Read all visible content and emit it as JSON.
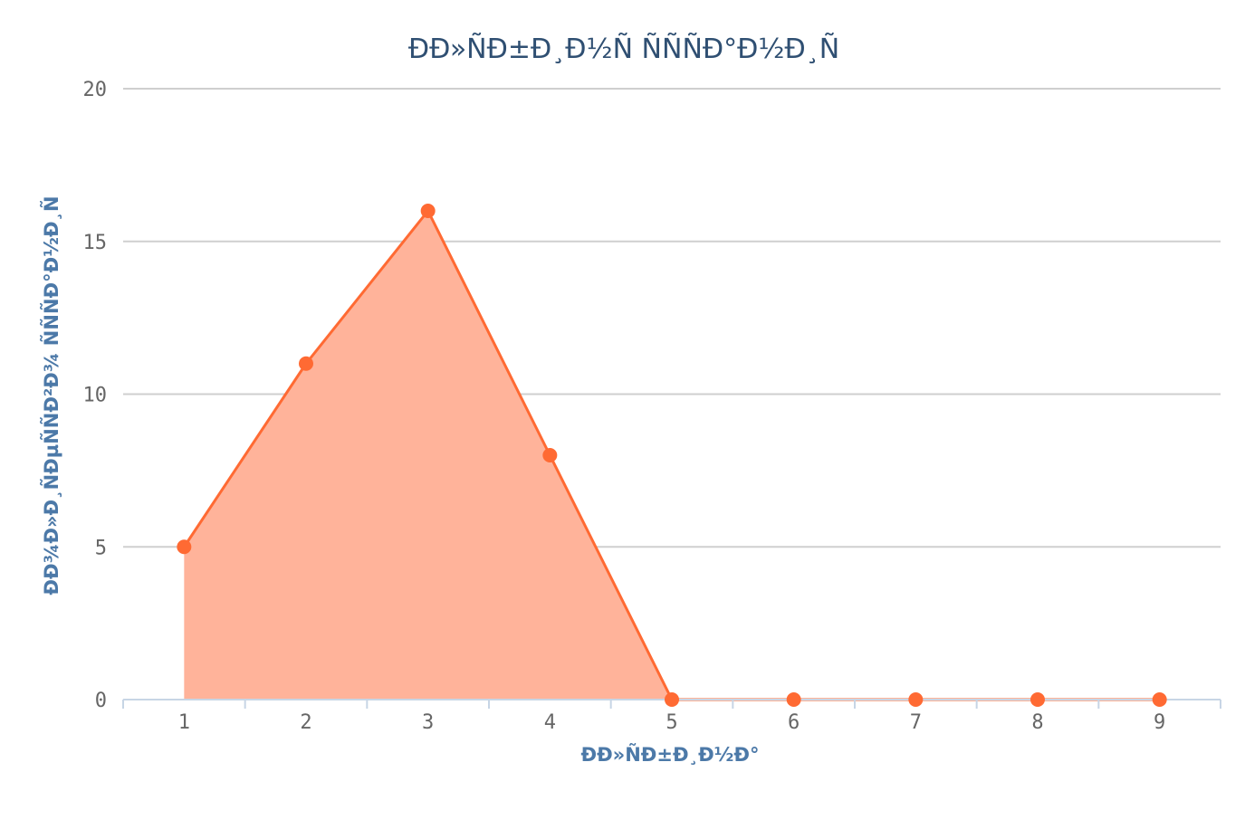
{
  "chart_data": {
    "type": "area",
    "title": "ÐÐ»ÑÐ±Ð¸Ð½Ñ ÑÑÑÐ°Ð½Ð¸Ñ",
    "xlabel": "ÐÐ»ÑÐ±Ð¸Ð½Ð°",
    "ylabel": "ÐÐ¾Ð»Ð¸ÑÐµÑÑÐ²Ð¾ ÑÑÑÐ°Ð½Ð¸Ñ",
    "x": [
      "1",
      "2",
      "3",
      "4",
      "5",
      "6",
      "7",
      "8",
      "9"
    ],
    "values": [
      5,
      11,
      16,
      8,
      0,
      0,
      0,
      0,
      0
    ],
    "ylim": [
      0,
      20
    ],
    "yticks": [
      "0",
      "5",
      "10",
      "15",
      "20"
    ],
    "grid": true,
    "colors": {
      "series": "#ff6a33",
      "fill": "#ffb39a"
    }
  }
}
